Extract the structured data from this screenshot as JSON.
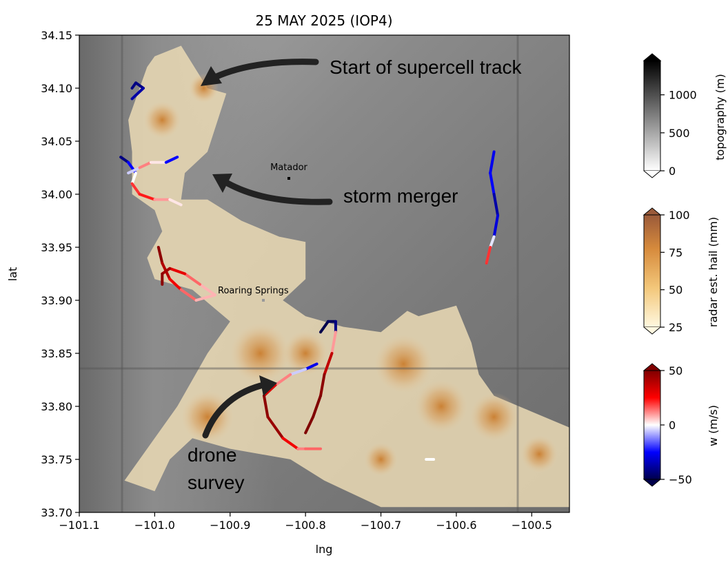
{
  "title": "25 MAY 2025 (IOP4)",
  "x_axis": {
    "label": "lng",
    "range": [
      -101.1,
      -100.45
    ],
    "ticks": [
      "−101.1",
      "−101.0",
      "−100.9",
      "−100.8",
      "−100.7",
      "−100.6",
      "−100.5"
    ]
  },
  "y_axis": {
    "label": "lat",
    "range": [
      33.7,
      34.15
    ],
    "ticks": [
      "33.70",
      "33.75",
      "33.80",
      "33.85",
      "33.90",
      "33.95",
      "34.00",
      "34.05",
      "34.10",
      "34.15"
    ]
  },
  "towns": [
    {
      "name": "Matador",
      "lng": -100.82,
      "lat": 34.015
    },
    {
      "name": "Roaring Springs",
      "lng": -100.855,
      "lat": 33.9
    }
  ],
  "annotations": [
    {
      "id": "supercell",
      "text": "Start of supercell track"
    },
    {
      "id": "merger",
      "text": "storm merger"
    },
    {
      "id": "drone",
      "lines": [
        "drone",
        "survey"
      ]
    }
  ],
  "colorbars": [
    {
      "id": "topography",
      "label": "topography (m)",
      "ticks": [
        "0",
        "500",
        "1000"
      ],
      "min": 0,
      "max": 1450,
      "colors": [
        "#ffffff",
        "#000000"
      ]
    },
    {
      "id": "hail",
      "label": "radar est. hail (mm)",
      "ticks": [
        "25",
        "50",
        "75",
        "100"
      ],
      "min": 25,
      "max": 100,
      "colors": [
        "#fff8e0",
        "#f3c77a",
        "#d68a3c",
        "#9a5a3a"
      ]
    },
    {
      "id": "w",
      "label": "w (m/s)",
      "ticks": [
        "−50",
        "0",
        "50"
      ],
      "min": -50,
      "max": 50,
      "colors": [
        "#00004c",
        "#0000ff",
        "#ffffff",
        "#ff0000",
        "#800000"
      ]
    }
  ],
  "chart_data": {
    "type": "map",
    "xlabel": "lng",
    "ylabel": "lat",
    "xlim": [
      -101.1,
      -100.45
    ],
    "ylim": [
      33.7,
      34.15
    ],
    "hail_swath_outline": [
      [
        -101.0,
        34.13
      ],
      [
        -100.965,
        34.14
      ],
      [
        -100.93,
        34.1
      ],
      [
        -100.905,
        34.095
      ],
      [
        -100.93,
        34.04
      ],
      [
        -100.96,
        34.02
      ],
      [
        -100.965,
        33.995
      ],
      [
        -100.93,
        33.995
      ],
      [
        -100.885,
        33.975
      ],
      [
        -100.835,
        33.96
      ],
      [
        -100.8,
        33.955
      ],
      [
        -100.8,
        33.92
      ],
      [
        -100.83,
        33.9
      ],
      [
        -100.8,
        33.885
      ],
      [
        -100.75,
        33.875
      ],
      [
        -100.7,
        33.87
      ],
      [
        -100.665,
        33.89
      ],
      [
        -100.65,
        33.885
      ],
      [
        -100.6,
        33.895
      ],
      [
        -100.58,
        33.86
      ],
      [
        -100.57,
        33.83
      ],
      [
        -100.55,
        33.81
      ],
      [
        -100.5,
        33.795
      ],
      [
        -100.45,
        33.78
      ],
      [
        -100.45,
        33.705
      ],
      [
        -100.7,
        33.705
      ],
      [
        -100.775,
        33.73
      ],
      [
        -100.82,
        33.75
      ],
      [
        -100.9,
        33.76
      ],
      [
        -100.95,
        33.77
      ],
      [
        -100.98,
        33.75
      ],
      [
        -101.0,
        33.72
      ],
      [
        -101.04,
        33.73
      ],
      [
        -100.97,
        33.8
      ],
      [
        -100.93,
        33.85
      ],
      [
        -100.9,
        33.88
      ],
      [
        -100.95,
        33.91
      ],
      [
        -101.0,
        33.92
      ],
      [
        -101.01,
        33.94
      ],
      [
        -100.99,
        33.965
      ],
      [
        -101.0,
        33.985
      ],
      [
        -101.03,
        34.0
      ],
      [
        -101.03,
        34.04
      ],
      [
        -101.035,
        34.07
      ],
      [
        -101.02,
        34.1
      ],
      [
        -101.01,
        34.12
      ]
    ],
    "hail_cores": [
      {
        "lng": -100.99,
        "lat": 34.07,
        "mm": 60
      },
      {
        "lng": -100.935,
        "lat": 34.1,
        "mm": 50
      },
      {
        "lng": -100.86,
        "lat": 33.85,
        "mm": 90
      },
      {
        "lng": -100.8,
        "lat": 33.85,
        "mm": 70
      },
      {
        "lng": -100.93,
        "lat": 33.79,
        "mm": 80
      },
      {
        "lng": -100.67,
        "lat": 33.84,
        "mm": 88
      },
      {
        "lng": -100.62,
        "lat": 33.8,
        "mm": 80
      },
      {
        "lng": -100.55,
        "lat": 33.79,
        "mm": 75
      },
      {
        "lng": -100.49,
        "lat": 33.755,
        "mm": 60
      },
      {
        "lng": -100.7,
        "lat": 33.75,
        "mm": 55
      }
    ],
    "drone_tracks": [
      {
        "points": [
          [
            -101.03,
            34.1,
            -40
          ],
          [
            -101.025,
            34.105,
            -45
          ],
          [
            -101.015,
            34.1,
            -40
          ],
          [
            -101.03,
            34.09,
            -35
          ]
        ]
      },
      {
        "points": [
          [
            -101.045,
            34.035,
            -45
          ],
          [
            -101.035,
            34.03,
            -40
          ],
          [
            -101.025,
            34.02,
            -10
          ],
          [
            -101.03,
            34.01,
            10
          ],
          [
            -101.02,
            34.0,
            30
          ],
          [
            -101.0,
            33.995,
            15
          ],
          [
            -100.98,
            33.995,
            5
          ],
          [
            -100.965,
            33.99,
            0
          ]
        ]
      },
      {
        "points": [
          [
            -101.035,
            34.02,
            -20
          ],
          [
            -101.02,
            34.025,
            10
          ],
          [
            -101.005,
            34.03,
            15
          ],
          [
            -100.985,
            34.03,
            -10
          ],
          [
            -100.97,
            34.035,
            -40
          ]
        ]
      },
      {
        "points": [
          [
            -100.995,
            33.95,
            50
          ],
          [
            -100.99,
            33.935,
            45
          ],
          [
            -100.98,
            33.92,
            35
          ],
          [
            -100.965,
            33.91,
            20
          ],
          [
            -100.945,
            33.9,
            10
          ],
          [
            -100.92,
            33.905,
            5
          ],
          [
            -100.94,
            33.915,
            10
          ],
          [
            -100.96,
            33.925,
            20
          ],
          [
            -100.98,
            33.93,
            40
          ],
          [
            -100.99,
            33.925,
            45
          ],
          [
            -100.99,
            33.915,
            50
          ]
        ]
      },
      {
        "points": [
          [
            -100.55,
            34.04,
            -35
          ],
          [
            -100.555,
            34.02,
            -20
          ],
          [
            -100.55,
            34.0,
            -30
          ],
          [
            -100.545,
            33.98,
            -45
          ],
          [
            -100.55,
            33.96,
            -15
          ],
          [
            -100.555,
            33.95,
            10
          ],
          [
            -100.56,
            33.935,
            30
          ]
        ]
      },
      {
        "points": [
          [
            -100.78,
            33.87,
            -50
          ],
          [
            -100.77,
            33.88,
            -50
          ],
          [
            -100.76,
            33.88,
            -45
          ],
          [
            -100.76,
            33.87,
            -40
          ]
        ]
      },
      {
        "points": [
          [
            -100.785,
            33.84,
            -40
          ],
          [
            -100.8,
            33.835,
            -15
          ],
          [
            -100.82,
            33.83,
            5
          ],
          [
            -100.84,
            33.82,
            20
          ],
          [
            -100.855,
            33.81,
            45
          ],
          [
            -100.85,
            33.79,
            50
          ],
          [
            -100.83,
            33.77,
            40
          ],
          [
            -100.81,
            33.76,
            15
          ],
          [
            -100.8,
            33.76,
            10
          ],
          [
            -100.78,
            33.76,
            20
          ]
        ]
      },
      {
        "points": [
          [
            -100.76,
            33.87,
            -10
          ],
          [
            -100.765,
            33.85,
            30
          ],
          [
            -100.775,
            33.83,
            45
          ],
          [
            -100.78,
            33.81,
            50
          ],
          [
            -100.79,
            33.79,
            50
          ],
          [
            -100.8,
            33.775,
            55
          ]
        ]
      },
      {
        "points": [
          [
            -100.64,
            33.75,
            0
          ],
          [
            -100.63,
            33.75,
            0
          ]
        ]
      }
    ]
  }
}
